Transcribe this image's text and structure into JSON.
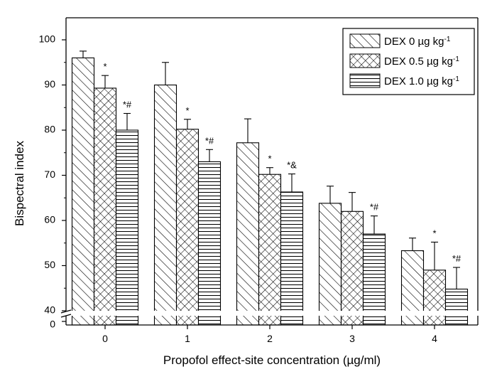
{
  "chart_data": {
    "type": "bar",
    "xlabel": "Propofol effect-site concentration (µg/ml)",
    "ylabel": "Bispectral index",
    "categories": [
      "0",
      "1",
      "2",
      "3",
      "4"
    ],
    "ylim": [
      40,
      100
    ],
    "y_ticks": [
      "40",
      "50",
      "60",
      "70",
      "80",
      "90",
      "100"
    ],
    "axis_break": true,
    "y_break_label": "0",
    "series": [
      {
        "name": "DEX   0  µg kg",
        "name_sup": "-1",
        "pattern": "diagonal",
        "values": [
          96,
          90,
          77.2,
          63.8,
          53.3
        ],
        "errors": [
          1.5,
          5.0,
          5.3,
          3.8,
          2.8
        ],
        "labels": [
          "",
          "",
          "",
          "",
          ""
        ]
      },
      {
        "name": "DEX 0.5 µg kg",
        "name_sup": "-1",
        "pattern": "crosshatch",
        "values": [
          89.3,
          80.2,
          70.2,
          62,
          49
        ],
        "errors": [
          2.8,
          2.2,
          1.5,
          4.2,
          6.2
        ],
        "labels": [
          "*",
          "*",
          "*",
          "",
          "*"
        ]
      },
      {
        "name": "DEX 1.0 µg kg",
        "name_sup": "-1",
        "pattern": "horizontal",
        "values": [
          80,
          73,
          66.3,
          57,
          44.8
        ],
        "errors": [
          3.7,
          2.7,
          4.0,
          4.0,
          4.8
        ],
        "labels": [
          "*#",
          "*#",
          "*&",
          "*#",
          "*#"
        ]
      }
    ],
    "legend": {
      "position": "top-right"
    }
  }
}
